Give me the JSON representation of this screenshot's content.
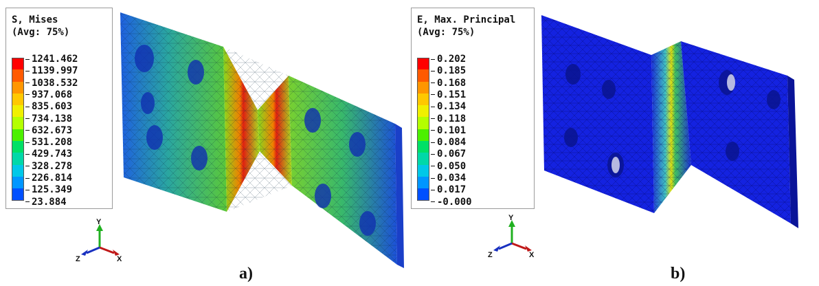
{
  "panels": [
    {
      "label": "a)",
      "legend": {
        "title_line1": "S, Mises",
        "title_line2": "(Avg: 75%)",
        "values": [
          "1241.462",
          "1139.997",
          "1038.532",
          "937.068",
          "835.603",
          "734.138",
          "632.673",
          "531.208",
          "429.743",
          "328.278",
          "226.814",
          "125.349",
          "23.884"
        ]
      }
    },
    {
      "label": "b)",
      "legend": {
        "title_line1": "E, Max. Principal",
        "title_line2": "(Avg: 75%)",
        "values": [
          "0.202",
          "0.185",
          "0.168",
          "0.151",
          "0.134",
          "0.118",
          "0.101",
          "0.084",
          "0.067",
          "0.050",
          "0.034",
          "0.017",
          "-0.000"
        ]
      }
    }
  ],
  "colormap": [
    "#ff0000",
    "#ff5a00",
    "#ff9600",
    "#ffc800",
    "#f0f000",
    "#b4ff00",
    "#4cf000",
    "#00e066",
    "#00d8a8",
    "#00c8e8",
    "#0096ff",
    "#0050ff",
    "#0000ff"
  ],
  "triad": {
    "x_label": "X",
    "y_label": "Y",
    "z_label": "Z"
  }
}
